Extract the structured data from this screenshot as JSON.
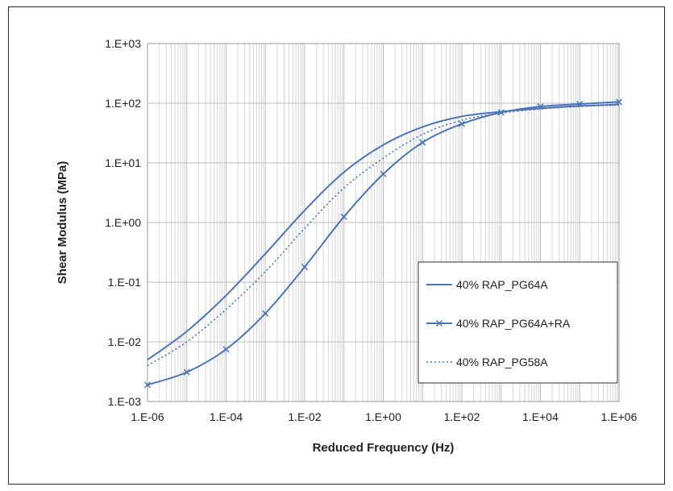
{
  "chart_data": {
    "type": "line",
    "xlabel": "Reduced Frequency (Hz)",
    "ylabel": "Shear Modulus (MPa)",
    "x_scale": "log",
    "y_scale": "log",
    "xlim": [
      1e-06,
      1000000.0
    ],
    "ylim": [
      0.001,
      1000.0
    ],
    "x_tick_labels": [
      "1.E-06",
      "1.E-04",
      "1.E-02",
      "1.E+00",
      "1.E+02",
      "1.E+04",
      "1.E+06"
    ],
    "y_tick_labels": [
      "1.E-03",
      "1.E-02",
      "1.E-01",
      "1.E+00",
      "1.E+01",
      "1.E+02",
      "1.E+03"
    ],
    "grid": true,
    "legend_position": "right",
    "series_color": "#4a76b8",
    "series": [
      {
        "name": "40% RAP_PG64A",
        "style": "solid",
        "marker": "none",
        "x": [
          1e-06,
          1e-05,
          0.0001,
          0.001,
          0.01,
          0.1,
          1,
          10,
          100,
          1000,
          10000,
          100000,
          1000000
        ],
        "y": [
          0.005,
          0.015,
          0.06,
          0.3,
          1.6,
          7,
          20,
          40,
          60,
          72,
          82,
          90,
          95
        ]
      },
      {
        "name": "40% RAP_PG64A+RA",
        "style": "solid",
        "marker": "x",
        "x": [
          1e-06,
          1e-05,
          0.0001,
          0.001,
          0.01,
          0.1,
          1,
          10,
          100,
          1000,
          10000,
          100000,
          1000000
        ],
        "y": [
          0.0019,
          0.0031,
          0.0075,
          0.03,
          0.18,
          1.25,
          6.5,
          22,
          45,
          70,
          88,
          97,
          105
        ]
      },
      {
        "name": "40% RAP_PG58A",
        "style": "dotted",
        "marker": "none",
        "x": [
          1e-06,
          1e-05,
          0.0001,
          0.001,
          0.01,
          0.1,
          1,
          10,
          100,
          1000,
          10000,
          100000,
          1000000
        ],
        "y": [
          0.004,
          0.01,
          0.035,
          0.15,
          0.8,
          3.8,
          12,
          30,
          52,
          68,
          80,
          88,
          93
        ]
      }
    ]
  }
}
